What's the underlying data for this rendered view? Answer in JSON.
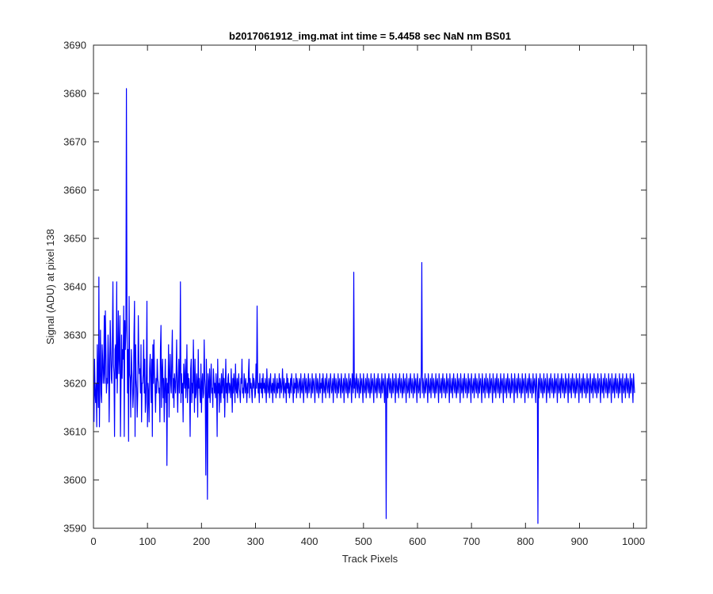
{
  "chart_data": {
    "type": "line",
    "title": "b2017061912_img.mat int time = 5.4458 sec  NaN nm BS01",
    "xlabel": "Track Pixels",
    "ylabel": "Signal (ADU) at pixel 138",
    "xlim": [
      0,
      1024
    ],
    "ylim": [
      3590,
      3690
    ],
    "xticks": [
      0,
      100,
      200,
      300,
      400,
      500,
      600,
      700,
      800,
      900,
      1000
    ],
    "yticks": [
      3590,
      3600,
      3610,
      3620,
      3630,
      3640,
      3650,
      3660,
      3670,
      3680,
      3690
    ],
    "grid": false,
    "line_color": "#0000ff",
    "series": [
      {
        "x_start": 1,
        "x_step": 1,
        "n_points": 1024,
        "values": [
          3612,
          3625,
          3618,
          3616,
          3620,
          3611,
          3628,
          3620,
          3615,
          3642,
          3611,
          3622,
          3631,
          3618,
          3616,
          3628,
          3625,
          3620,
          3622,
          3634,
          3620,
          3635,
          3627,
          3618,
          3621,
          3620,
          3630,
          3625,
          3612,
          3622,
          3633,
          3627,
          3621,
          3620,
          3629,
          3641,
          3624,
          3622,
          3609,
          3627,
          3628,
          3621,
          3641,
          3618,
          3625,
          3635,
          3622,
          3627,
          3634,
          3609,
          3620,
          3630,
          3621,
          3627,
          3625,
          3636,
          3609,
          3633,
          3627,
          3631,
          3681,
          3635,
          3618,
          3627,
          3608,
          3638,
          3622,
          3621,
          3613,
          3627,
          3623,
          3620,
          3615,
          3618,
          3630,
          3637,
          3609,
          3628,
          3621,
          3619,
          3613,
          3618,
          3634,
          3625,
          3622,
          3623,
          3618,
          3628,
          3612,
          3620,
          3620,
          3622,
          3629,
          3618,
          3625,
          3614,
          3616,
          3622,
          3637,
          3611,
          3620,
          3618,
          3612,
          3623,
          3626,
          3621,
          3616,
          3625,
          3609,
          3628,
          3620,
          3629,
          3622,
          3619,
          3614,
          3621,
          3618,
          3625,
          3621,
          3620,
          3618,
          3619,
          3612,
          3627,
          3632,
          3615,
          3622,
          3625,
          3617,
          3621,
          3612,
          3619,
          3625,
          3616,
          3621,
          3603,
          3620,
          3618,
          3628,
          3613,
          3622,
          3626,
          3620,
          3618,
          3625,
          3631,
          3617,
          3621,
          3615,
          3622,
          3620,
          3618,
          3622,
          3629,
          3619,
          3614,
          3621,
          3625,
          3618,
          3623,
          3641,
          3616,
          3622,
          3618,
          3620,
          3612,
          3624,
          3621,
          3619,
          3625,
          3617,
          3620,
          3628,
          3616,
          3622,
          3619,
          3621,
          3618,
          3609,
          3623,
          3625,
          3616,
          3620,
          3618,
          3629,
          3621,
          3614,
          3625,
          3617,
          3618,
          3622,
          3620,
          3613,
          3627,
          3619,
          3621,
          3618,
          3616,
          3624,
          3614,
          3620,
          3622,
          3617,
          3618,
          3629,
          3621,
          3619,
          3601,
          3625,
          3618,
          3596,
          3622,
          3620,
          3617,
          3623,
          3616,
          3620,
          3624,
          3618,
          3619,
          3615,
          3623,
          3621,
          3618,
          3620,
          3617,
          3622,
          3619,
          3609,
          3625,
          3618,
          3620,
          3614,
          3621,
          3619,
          3616,
          3622,
          3618,
          3620,
          3623,
          3617,
          3621,
          3613,
          3619,
          3625,
          3618,
          3620,
          3616,
          3621,
          3622,
          3618,
          3620,
          3619,
          3617,
          3623,
          3619,
          3614,
          3621,
          3618,
          3622,
          3620,
          3616,
          3624,
          3619,
          3618,
          3621,
          3617,
          3620,
          3622,
          3619,
          3618,
          3616,
          3621,
          3620,
          3625,
          3618,
          3619,
          3617,
          3622,
          3620,
          3618,
          3621,
          3619,
          3616,
          3620,
          3618,
          3622,
          3625,
          3617,
          3621,
          3619,
          3620,
          3618,
          3616,
          3622,
          3619,
          3621,
          3620,
          3617,
          3618,
          3624,
          3619,
          3636,
          3621,
          3618,
          3620,
          3616,
          3622,
          3619,
          3620,
          3618,
          3621,
          3617,
          3622,
          3619,
          3620,
          3618,
          3621,
          3619,
          3616,
          3623,
          3620,
          3618,
          3619,
          3621,
          3617,
          3620,
          3622,
          3618,
          3619,
          3620,
          3616,
          3621,
          3619,
          3618,
          3622,
          3620,
          3617,
          3619,
          3621,
          3618,
          3620,
          3619,
          3622,
          3617,
          3621,
          3620,
          3618,
          3619,
          3623,
          3620,
          3617,
          3621,
          3619,
          3618,
          3620,
          3616,
          3622,
          3619,
          3621,
          3618,
          3620,
          3617,
          3619,
          3621,
          3618,
          3622,
          3620,
          3619,
          3616,
          3621,
          3618,
          3620,
          3619,
          3622,
          3617,
          3621,
          3620,
          3618,
          3619,
          3621,
          3620,
          3617,
          3622,
          3619,
          3618,
          3620,
          3621,
          3616,
          3619,
          3622,
          3620,
          3618,
          3621,
          3619,
          3617,
          3620,
          3622,
          3618,
          3619,
          3621,
          3620,
          3617,
          3619,
          3622,
          3618,
          3620,
          3621,
          3619,
          3616,
          3620,
          3622,
          3619,
          3618,
          3621,
          3620,
          3617,
          3619,
          3622,
          3618,
          3620,
          3619,
          3621,
          3616,
          3622,
          3620,
          3618,
          3619,
          3621,
          3617,
          3620,
          3622,
          3619,
          3618,
          3620,
          3621,
          3617,
          3619,
          3622,
          3620,
          3618,
          3619,
          3621,
          3616,
          3620,
          3622,
          3619,
          3618,
          3621,
          3620,
          3617,
          3619,
          3622,
          3618,
          3620,
          3621,
          3619,
          3617,
          3622,
          3620,
          3618,
          3619,
          3621,
          3616,
          3620,
          3622,
          3619,
          3618,
          3621,
          3620,
          3617,
          3619,
          3622,
          3618,
          3620,
          3621,
          3619,
          3616,
          3622,
          3620,
          3618,
          3643,
          3619,
          3621,
          3617,
          3620,
          3622,
          3619,
          3618,
          3621,
          3620,
          3617,
          3619,
          3622,
          3618,
          3620,
          3621,
          3619,
          3616,
          3622,
          3620,
          3618,
          3619,
          3621,
          3617,
          3620,
          3622,
          3619,
          3618,
          3621,
          3620,
          3617,
          3619,
          3622,
          3618,
          3620,
          3621,
          3619,
          3616,
          3622,
          3620,
          3618,
          3619,
          3621,
          3617,
          3620,
          3622,
          3619,
          3618,
          3621,
          3620,
          3617,
          3619,
          3622,
          3618,
          3620,
          3621,
          3619,
          3616,
          3622,
          3620,
          3592,
          3619,
          3621,
          3617,
          3620,
          3622,
          3619,
          3618,
          3621,
          3620,
          3617,
          3619,
          3622,
          3618,
          3620,
          3621,
          3619,
          3616,
          3622,
          3620,
          3618,
          3619,
          3621,
          3617,
          3620,
          3622,
          3619,
          3618,
          3621,
          3620,
          3617,
          3619,
          3622,
          3618,
          3620,
          3621,
          3619,
          3616,
          3622,
          3620,
          3618,
          3619,
          3621,
          3617,
          3620,
          3622,
          3619,
          3618,
          3621,
          3620,
          3617,
          3619,
          3622,
          3618,
          3620,
          3621,
          3619,
          3616,
          3622,
          3620,
          3618,
          3619,
          3621,
          3617,
          3620,
          3622,
          3645,
          3618,
          3621,
          3620,
          3617,
          3619,
          3622,
          3618,
          3620,
          3621,
          3619,
          3616,
          3622,
          3620,
          3618,
          3619,
          3621,
          3617,
          3620,
          3622,
          3619,
          3618,
          3621,
          3620,
          3617,
          3619,
          3622,
          3618,
          3620,
          3621,
          3619,
          3616,
          3622,
          3620,
          3618,
          3619,
          3621,
          3617,
          3620,
          3622,
          3619,
          3618,
          3621,
          3620,
          3617,
          3619,
          3622,
          3618,
          3620,
          3621,
          3619,
          3616,
          3622,
          3620,
          3618,
          3619,
          3621,
          3617,
          3620,
          3622,
          3619,
          3618,
          3621,
          3620,
          3617,
          3619,
          3622,
          3618,
          3620,
          3621,
          3619,
          3616,
          3622,
          3620,
          3618,
          3619,
          3621,
          3617,
          3620,
          3622,
          3619,
          3618,
          3621,
          3620,
          3617,
          3619,
          3622,
          3618,
          3620,
          3621,
          3619,
          3616,
          3622,
          3620,
          3618,
          3619,
          3621,
          3617,
          3620,
          3622,
          3619,
          3618,
          3621,
          3620,
          3617,
          3619,
          3622,
          3618,
          3620,
          3621,
          3619,
          3616,
          3622,
          3620,
          3618,
          3619,
          3621,
          3617,
          3620,
          3622,
          3619,
          3618,
          3621,
          3620,
          3617,
          3619,
          3622,
          3618,
          3620,
          3621,
          3619,
          3616,
          3622,
          3620,
          3618,
          3619,
          3621,
          3617,
          3620,
          3622,
          3619,
          3618,
          3621,
          3620,
          3617,
          3619,
          3622,
          3618,
          3620,
          3621,
          3619,
          3616,
          3622,
          3620,
          3618,
          3619,
          3621,
          3617,
          3620,
          3622,
          3619,
          3618,
          3621,
          3620,
          3617,
          3619,
          3622,
          3618,
          3620,
          3621,
          3619,
          3616,
          3622,
          3620,
          3618,
          3619,
          3621,
          3617,
          3620,
          3622,
          3619,
          3618,
          3621,
          3620,
          3617,
          3619,
          3622,
          3618,
          3620,
          3621,
          3619,
          3616,
          3622,
          3620,
          3618,
          3619,
          3621,
          3617,
          3620,
          3622,
          3619,
          3618,
          3621,
          3620,
          3617,
          3619,
          3622,
          3618,
          3620,
          3621,
          3619,
          3616,
          3622,
          3620,
          3618,
          3591,
          3621,
          3617,
          3620,
          3622,
          3619,
          3618,
          3621,
          3620,
          3617,
          3619,
          3622,
          3618,
          3620,
          3621,
          3619,
          3616,
          3622,
          3620,
          3618,
          3619,
          3621,
          3617,
          3620,
          3622,
          3619,
          3618,
          3621,
          3620,
          3617,
          3619,
          3622,
          3618,
          3620,
          3621,
          3619,
          3616,
          3622,
          3620,
          3618,
          3619,
          3621,
          3617,
          3620,
          3622,
          3619,
          3618,
          3621,
          3620,
          3617,
          3619,
          3622,
          3618,
          3620,
          3621,
          3619,
          3616,
          3622,
          3620,
          3618,
          3619,
          3621,
          3617,
          3620,
          3622,
          3619,
          3618,
          3621,
          3620,
          3617,
          3619,
          3622,
          3618,
          3620,
          3621,
          3619,
          3616,
          3622,
          3620,
          3618,
          3619,
          3621,
          3617,
          3620,
          3622,
          3619,
          3618,
          3621,
          3620,
          3617,
          3619,
          3622,
          3618,
          3620,
          3621,
          3619,
          3616,
          3622,
          3620,
          3618,
          3619,
          3621,
          3617,
          3620,
          3622,
          3619,
          3618,
          3621,
          3620,
          3617,
          3619,
          3622,
          3618,
          3620,
          3621,
          3619,
          3616,
          3622,
          3620,
          3618,
          3619,
          3621,
          3617,
          3620,
          3622,
          3619,
          3618,
          3621,
          3620,
          3617,
          3619,
          3622,
          3618,
          3620,
          3621,
          3619,
          3616,
          3622,
          3620,
          3618,
          3619,
          3621,
          3617,
          3620,
          3622,
          3619,
          3618,
          3621,
          3620,
          3617,
          3619,
          3622,
          3618,
          3620,
          3621,
          3619,
          3616,
          3622,
          3620,
          3618,
          3619,
          3621,
          3617,
          3620,
          3622,
          3619,
          3618,
          3621,
          3620,
          3617,
          3619,
          3622,
          3618,
          3620,
          3621,
          3619,
          3616,
          3622,
          3620,
          3618
        ]
      }
    ]
  }
}
